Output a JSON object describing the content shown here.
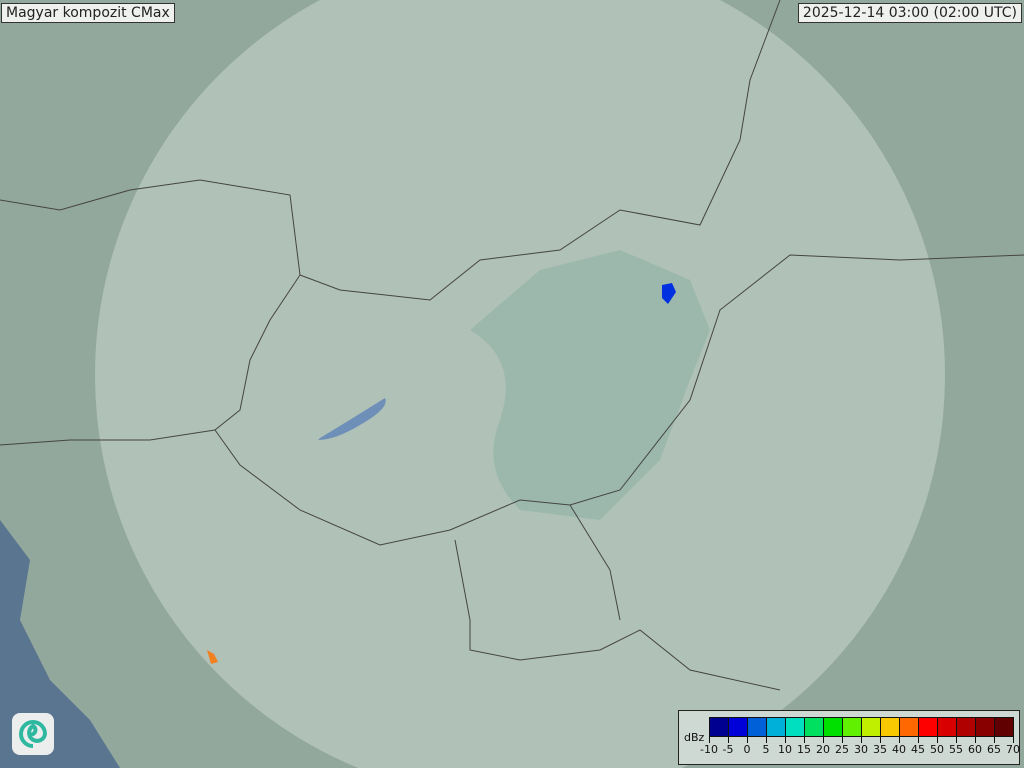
{
  "header": {
    "title": "Magyar kompozit  CMax",
    "timestamp": "2025-12-14 03:00 (02:00 UTC)"
  },
  "legend": {
    "unit": "dBz",
    "labels": [
      "-10",
      "-5",
      "0",
      "5",
      "10",
      "15",
      "20",
      "25",
      "30",
      "35",
      "40",
      "45",
      "50",
      "55",
      "60",
      "65",
      "70"
    ],
    "colors": [
      "#000090",
      "#0000d8",
      "#0060d8",
      "#00b0d8",
      "#00e0c0",
      "#00e060",
      "#00e000",
      "#60f000",
      "#c0f000",
      "#f8c800",
      "#ff6800",
      "#ff0000",
      "#d80000",
      "#b00000",
      "#880000",
      "#600000"
    ]
  },
  "logo": {
    "icon": "swirl-logo-icon"
  }
}
